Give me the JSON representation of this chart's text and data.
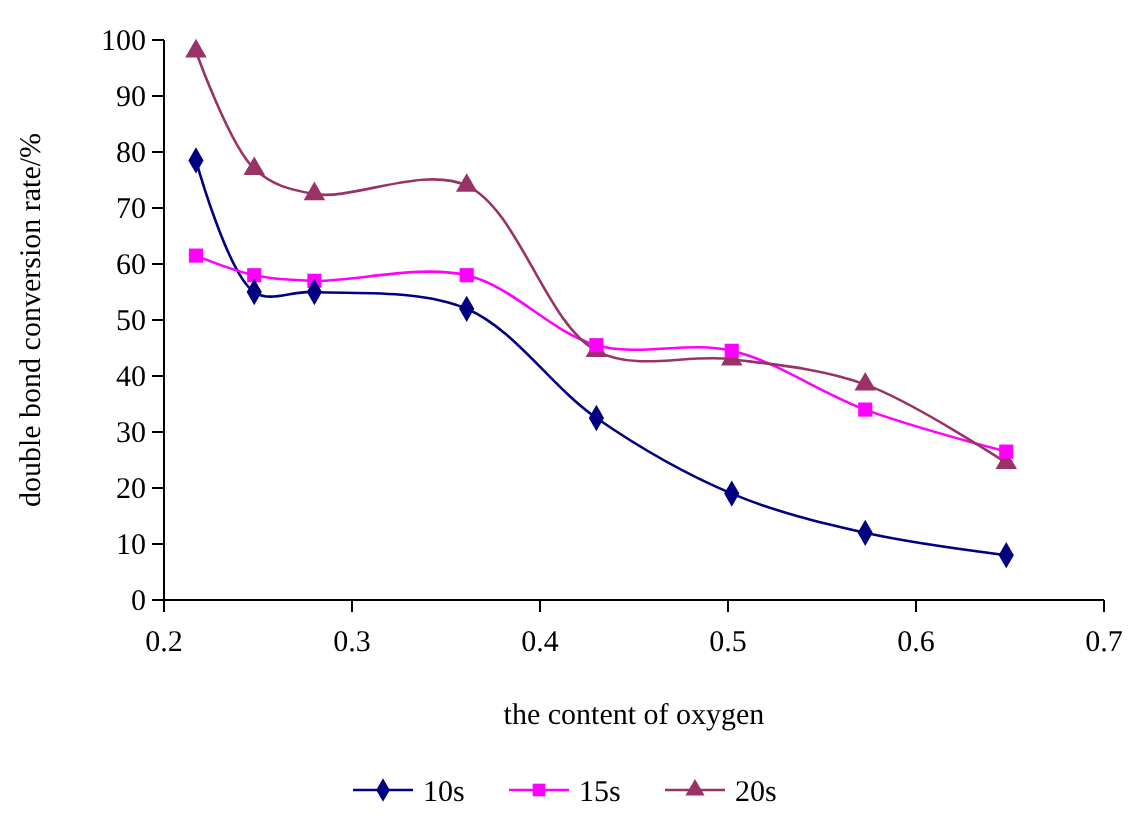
{
  "chart_data": {
    "type": "line",
    "xlabel": "the content of oxygen",
    "ylabel": "double bond conversion rate/%",
    "xlim": [
      0.2,
      0.7
    ],
    "xticks": [
      0.2,
      0.3,
      0.4,
      0.5,
      0.6,
      0.7
    ],
    "ylim": [
      0,
      100
    ],
    "yticks": [
      0,
      10,
      20,
      30,
      40,
      50,
      60,
      70,
      80,
      90,
      100
    ],
    "grid": false,
    "legend": "bottom",
    "x": [
      0.217,
      0.248,
      0.28,
      0.361,
      0.43,
      0.502,
      0.573,
      0.648
    ],
    "series": [
      {
        "name": "10s",
        "color": "#000080",
        "marker": "diamond",
        "values": [
          78.5,
          55,
          55,
          52,
          32.5,
          19,
          12,
          8
        ]
      },
      {
        "name": "15s",
        "color": "#ff00ff",
        "marker": "square",
        "values": [
          61.5,
          58,
          57,
          58,
          45.5,
          44.5,
          34,
          26.5
        ]
      },
      {
        "name": "20s",
        "color": "#993366",
        "marker": "triangle",
        "values": [
          98,
          77,
          72.5,
          74,
          44.5,
          43,
          38.5,
          24.5
        ]
      }
    ]
  }
}
